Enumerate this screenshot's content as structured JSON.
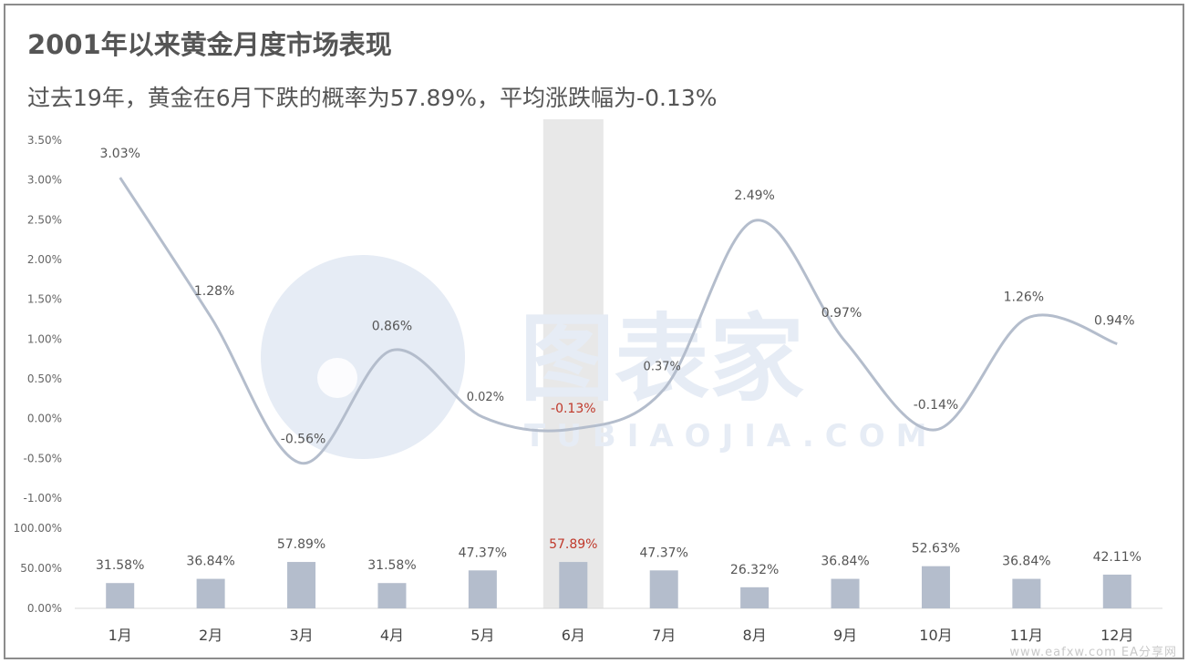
{
  "header": {
    "title": "2001年以来黄金月度市场表现",
    "subtitle": "过去19年，黄金在6月下跌的概率为57.89%，平均涨跌幅为-0.13%"
  },
  "watermark": {
    "name": "图表家",
    "url": "TUBIAOJIA.COM"
  },
  "footer": {
    "source": "www.eafxw.com  EA分享网"
  },
  "colors": {
    "line": "#b4bdcc",
    "bar": "#b4bdcc",
    "highlight_band": "#e8e8e8",
    "highlight_text": "#c0392b",
    "label_text": "#555555",
    "axis_text": "#666666",
    "watermark": "#e6ecf5"
  },
  "chart_data": [
    {
      "type": "line",
      "categories": [
        "1月",
        "2月",
        "3月",
        "4月",
        "5月",
        "6月",
        "7月",
        "8月",
        "9月",
        "10月",
        "11月",
        "12月"
      ],
      "values": [
        3.03,
        1.28,
        -0.56,
        0.86,
        0.02,
        -0.13,
        0.37,
        2.49,
        0.97,
        -0.14,
        1.26,
        0.94
      ],
      "data_labels": [
        "3.03%",
        "1.28%",
        "-0.56%",
        "0.86%",
        "0.02%",
        "-0.13%",
        "0.37%",
        "2.49%",
        "0.97%",
        "-0.14%",
        "1.26%",
        "0.94%"
      ],
      "yticks": [
        "3.50%",
        "3.00%",
        "2.50%",
        "2.00%",
        "1.50%",
        "1.00%",
        "0.50%",
        "0.00%",
        "-0.50%",
        "-1.00%"
      ],
      "ylim": [
        -1.0,
        3.5
      ],
      "smooth": true,
      "highlight_category": "6月"
    },
    {
      "type": "bar",
      "categories": [
        "1月",
        "2月",
        "3月",
        "4月",
        "5月",
        "6月",
        "7月",
        "8月",
        "9月",
        "10月",
        "11月",
        "12月"
      ],
      "values": [
        31.58,
        36.84,
        57.89,
        31.58,
        47.37,
        57.89,
        47.37,
        26.32,
        36.84,
        52.63,
        36.84,
        42.11
      ],
      "data_labels": [
        "31.58%",
        "36.84%",
        "57.89%",
        "31.58%",
        "47.37%",
        "57.89%",
        "47.37%",
        "26.32%",
        "36.84%",
        "52.63%",
        "36.84%",
        "42.11%"
      ],
      "yticks": [
        "100.00%",
        "50.00%",
        "0.00%"
      ],
      "ylim": [
        0,
        100
      ],
      "highlight_category": "6月"
    }
  ]
}
